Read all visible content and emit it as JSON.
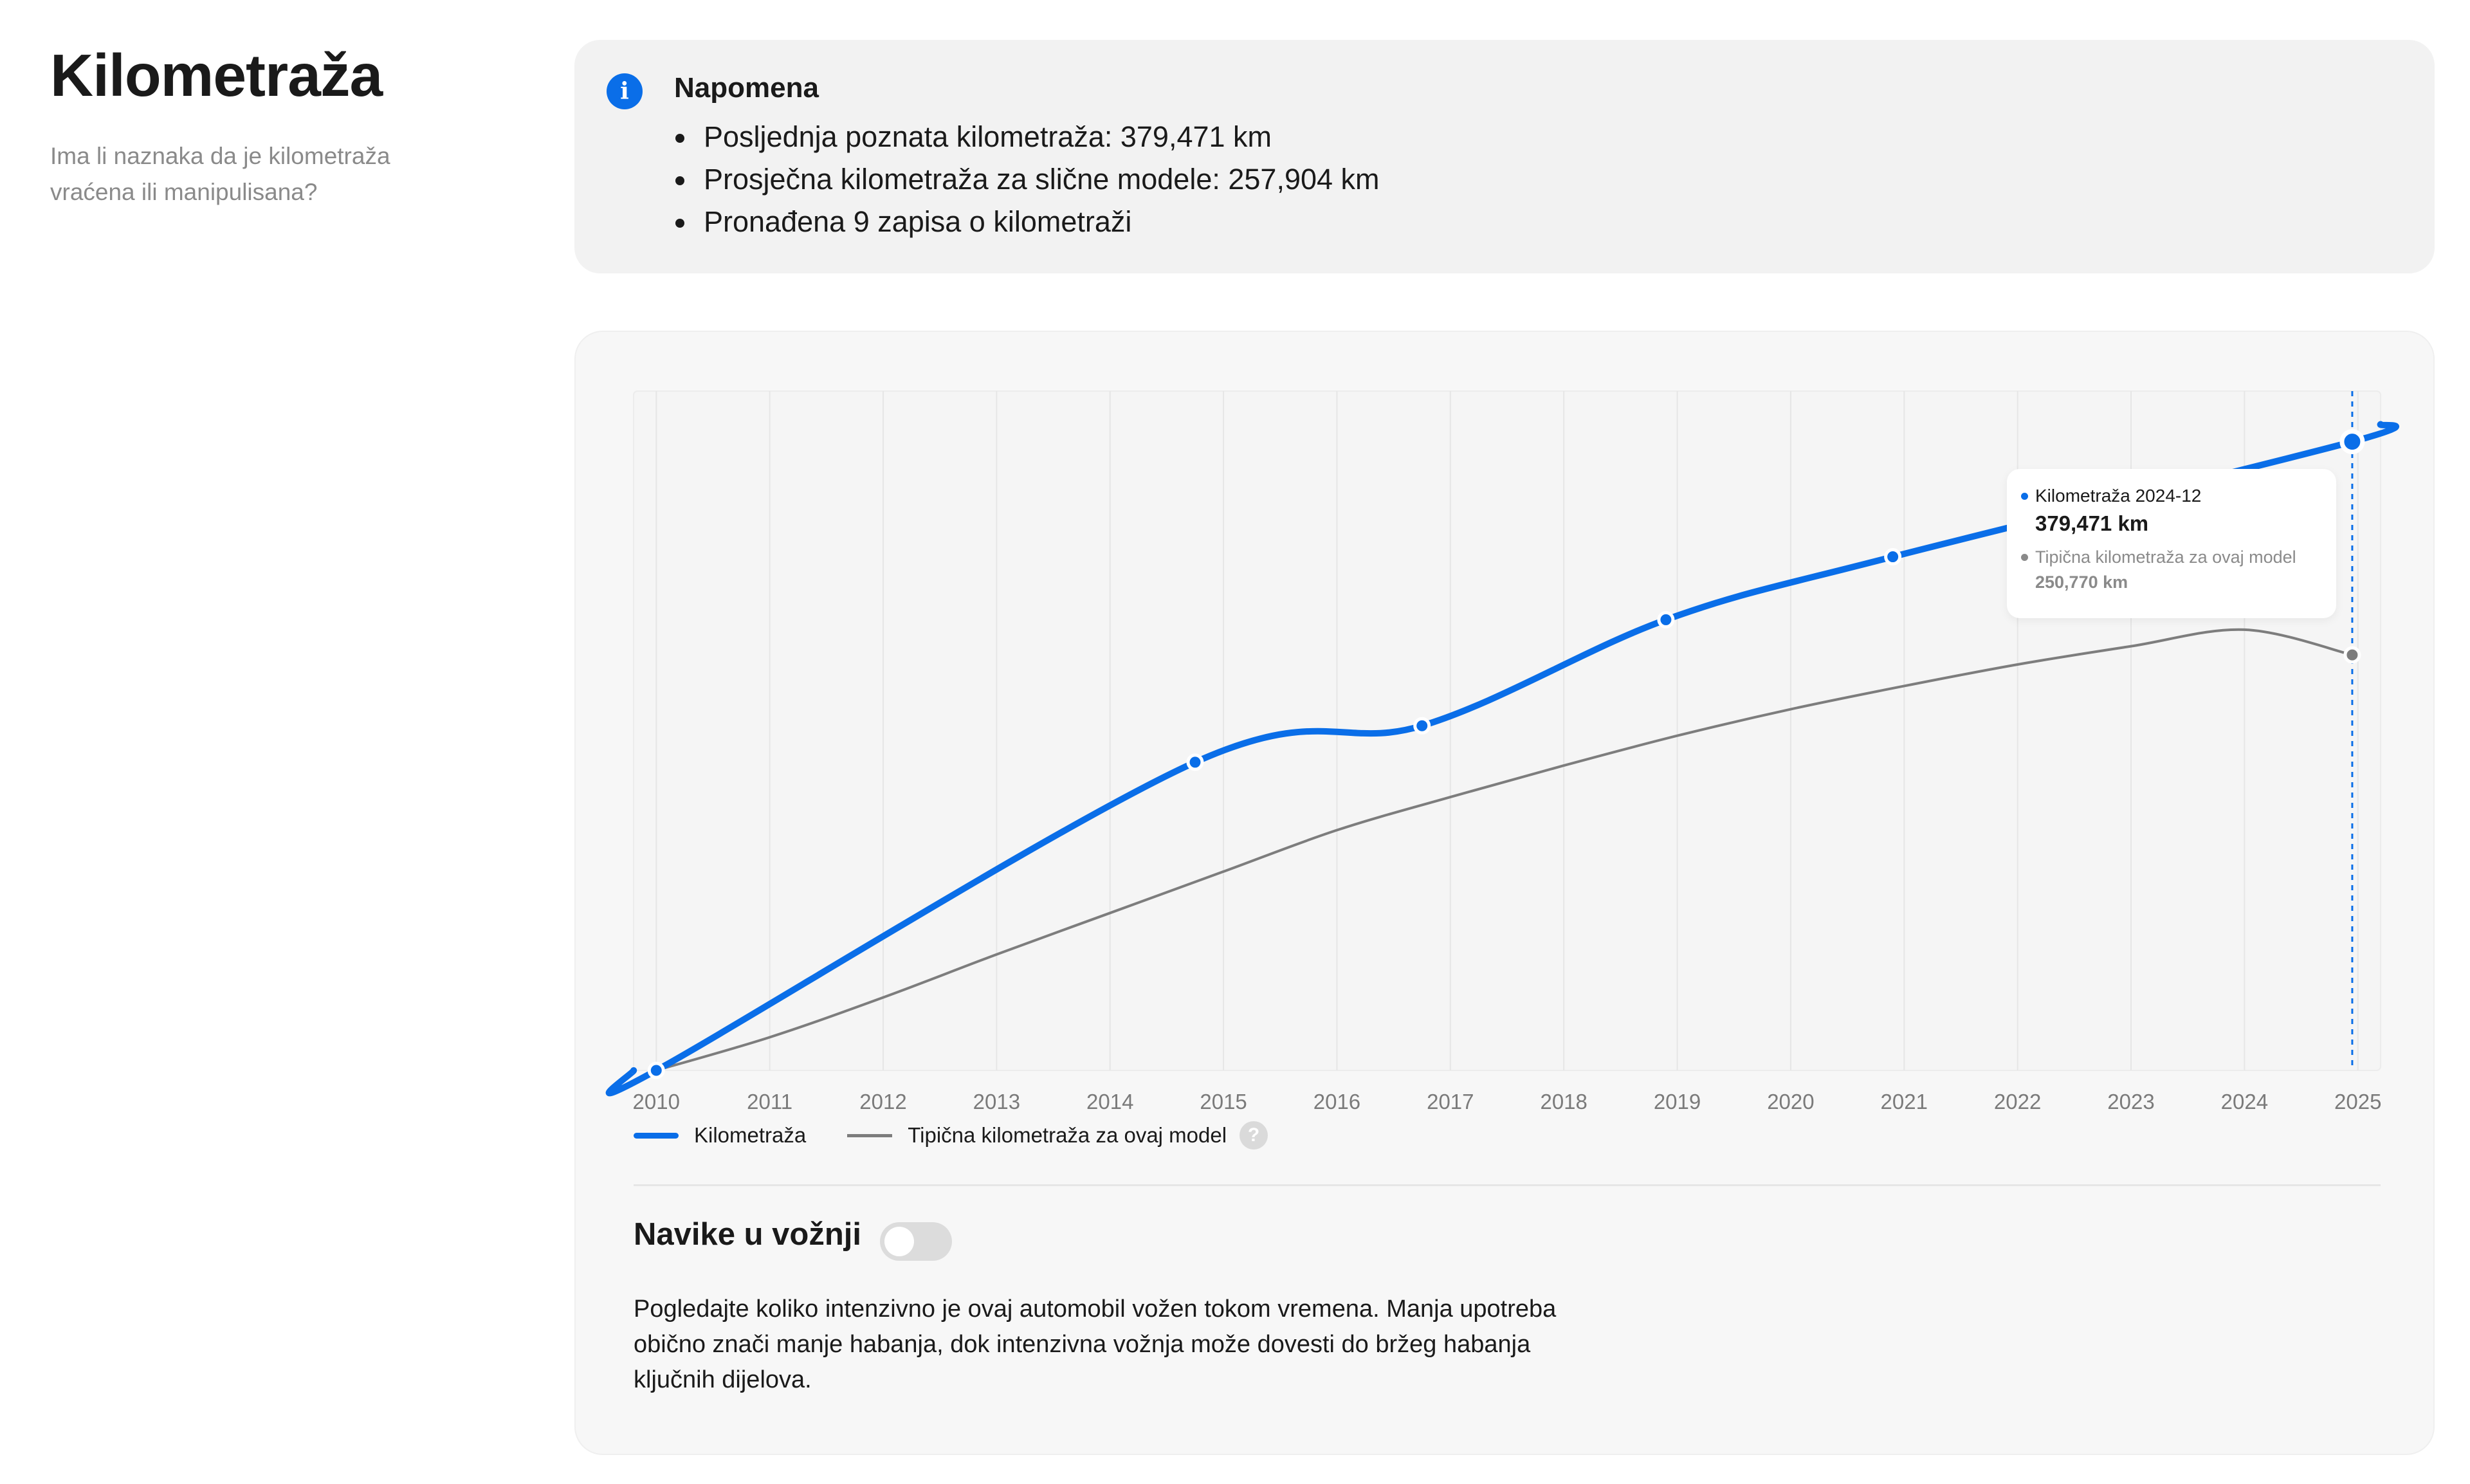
{
  "header": {
    "title": "Kilometraža",
    "subtitle": "Ima li naznaka da je kilometraža vraćena ili manipulisana?"
  },
  "note": {
    "icon": "info-icon",
    "title": "Napomena",
    "items": [
      "Posljednja poznata kilometraža: 379,471 km",
      "Prosječna kilometraža za slične modele: 257,904 km",
      "Pronađena 9 zapisa o kilometraži"
    ]
  },
  "tooltip": {
    "label_1": "Kilometraža 2024-12",
    "value_1": "379,471 km",
    "label_2": "Tipična kilometraža za ovaj model",
    "value_2": "250,770 km"
  },
  "legend": {
    "series_1": "Kilometraža",
    "series_2": "Tipična kilometraža za ovaj model",
    "help_icon": "question-icon"
  },
  "habits": {
    "title": "Navike u vožnji",
    "toggle_on": false,
    "description": "Pogledajte koliko intenzivno je ovaj automobil vožen tokom vremena. Manja upotreba obično znači manje habanja, dok intenzivna vožnja može dovesti do bržeg habanja ključnih dijelova."
  },
  "colors": {
    "accent": "#0a6ee8",
    "typical_line": "#7d7d7d",
    "card_bg": "#f2f2f2"
  },
  "chart_data": {
    "type": "line",
    "x_ticks": [
      "2010",
      "2011",
      "2012",
      "2013",
      "2014",
      "2015",
      "2016",
      "2017",
      "2018",
      "2019",
      "2020",
      "2021",
      "2022",
      "2023",
      "2024",
      "2025"
    ],
    "xlim": [
      2009.8,
      2025.2
    ],
    "ylim": [
      0,
      410000
    ],
    "grid": "vertical",
    "legend_position": "bottom",
    "series": [
      {
        "name": "Kilometraža",
        "color": "#0a6ee8",
        "x": [
          2010.0,
          2014.75,
          2016.75,
          2018.9,
          2020.9,
          2024.95
        ],
        "y": [
          0,
          186000,
          208000,
          272000,
          310000,
          379471
        ],
        "markers": true
      },
      {
        "name": "Tipična kilometraža za ovaj model",
        "color": "#7d7d7d",
        "x": [
          2010.0,
          2011.0,
          2012.0,
          2013.0,
          2014.0,
          2015.0,
          2016.0,
          2017.0,
          2018.0,
          2019.0,
          2020.0,
          2021.0,
          2022.0,
          2023.0,
          2024.0,
          2024.95
        ],
        "y": [
          0,
          20000,
          44000,
          70000,
          95000,
          120000,
          145000,
          165000,
          184000,
          202000,
          218000,
          232000,
          245000,
          256000,
          266000,
          250770
        ],
        "markers_at": [
          2024.95
        ]
      }
    ],
    "highlight": {
      "x": 2024.95,
      "label": "2024-12"
    }
  }
}
